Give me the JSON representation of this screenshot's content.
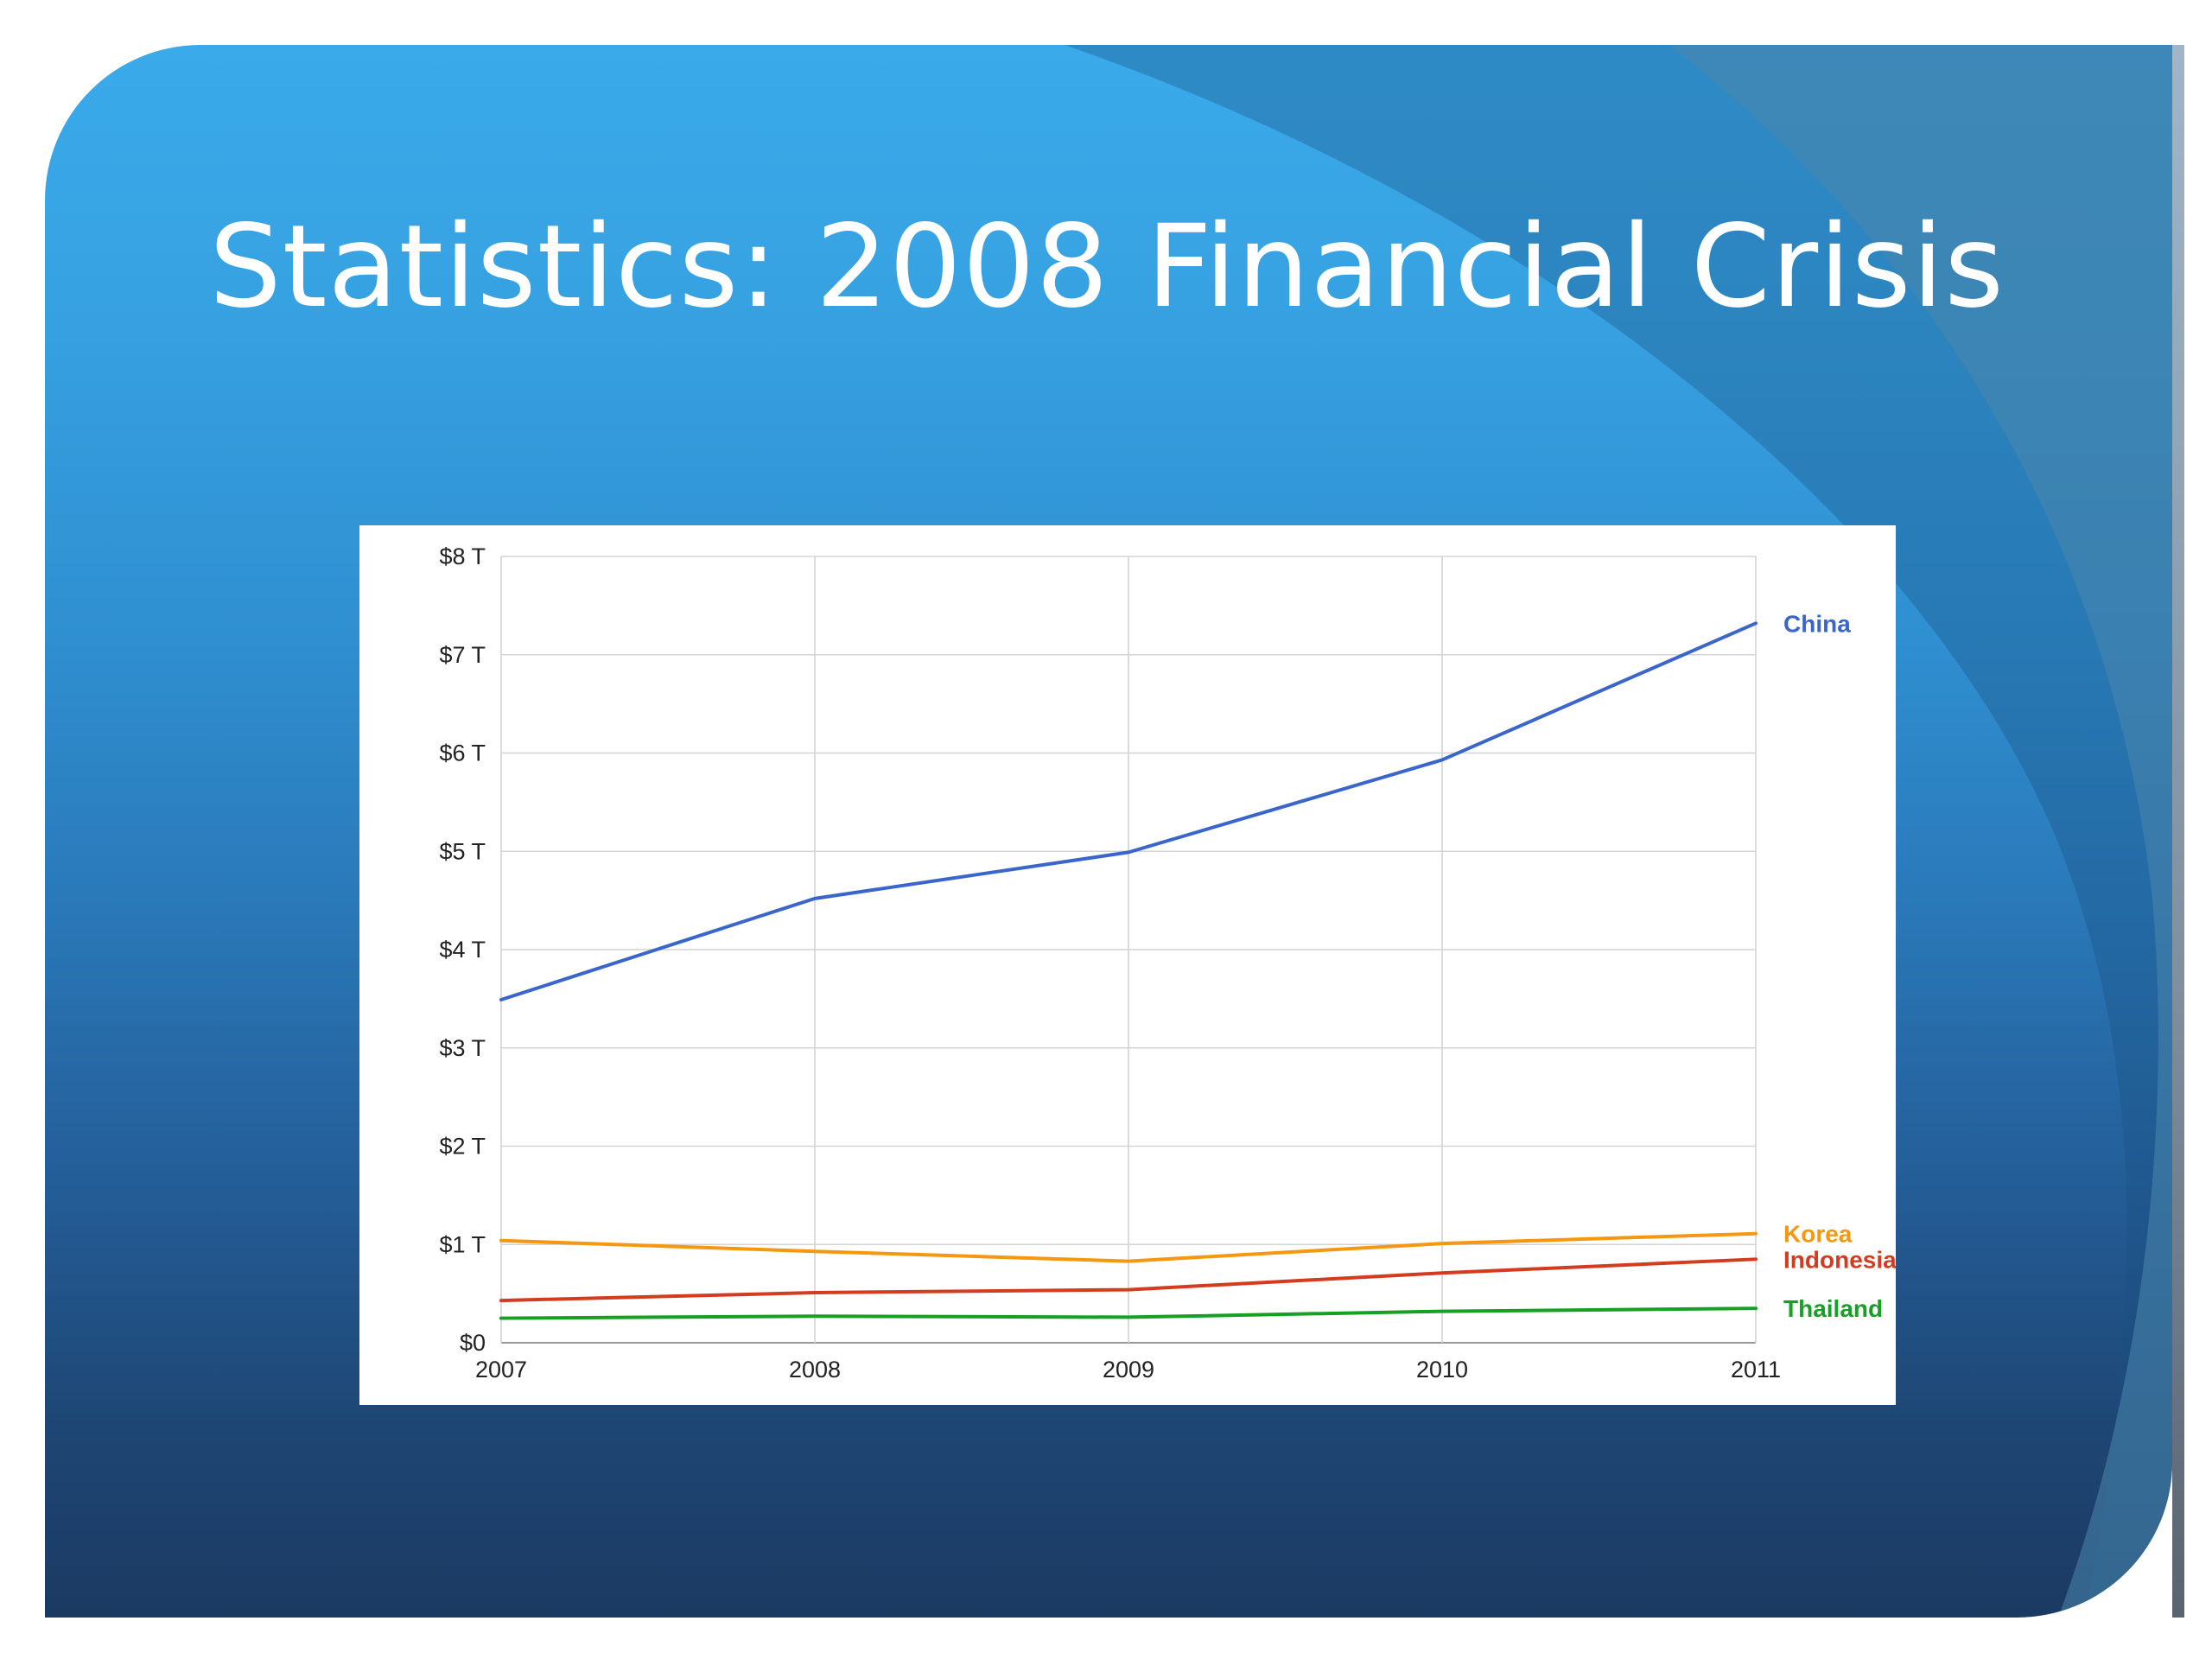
{
  "slide": {
    "title": "Statistics: 2008 Financial Crisis"
  },
  "chart_data": {
    "type": "line",
    "x": [
      "2007",
      "2008",
      "2009",
      "2010",
      "2011"
    ],
    "ylim": [
      0,
      8
    ],
    "yticks": [
      {
        "value": 0,
        "label": "$0"
      },
      {
        "value": 1,
        "label": "$1 T"
      },
      {
        "value": 2,
        "label": "$2 T"
      },
      {
        "value": 3,
        "label": "$3 T"
      },
      {
        "value": 4,
        "label": "$4 T"
      },
      {
        "value": 5,
        "label": "$5 T"
      },
      {
        "value": 6,
        "label": "$6 T"
      },
      {
        "value": 7,
        "label": "$7 T"
      },
      {
        "value": 8,
        "label": "$8 T"
      }
    ],
    "grid": true,
    "legend": "inline labels at right end of lines",
    "series": [
      {
        "name": "China",
        "color": "#3a66cc",
        "values": [
          3.49,
          4.52,
          4.99,
          5.93,
          7.32
        ]
      },
      {
        "name": "Korea",
        "color": "#f5980f",
        "values": [
          1.04,
          0.93,
          0.83,
          1.01,
          1.11
        ]
      },
      {
        "name": "Indonesia",
        "color": "#d43c20",
        "values": [
          0.43,
          0.51,
          0.54,
          0.71,
          0.85
        ]
      },
      {
        "name": "Thailand",
        "color": "#16a024",
        "values": [
          0.25,
          0.27,
          0.26,
          0.32,
          0.35
        ]
      }
    ]
  }
}
